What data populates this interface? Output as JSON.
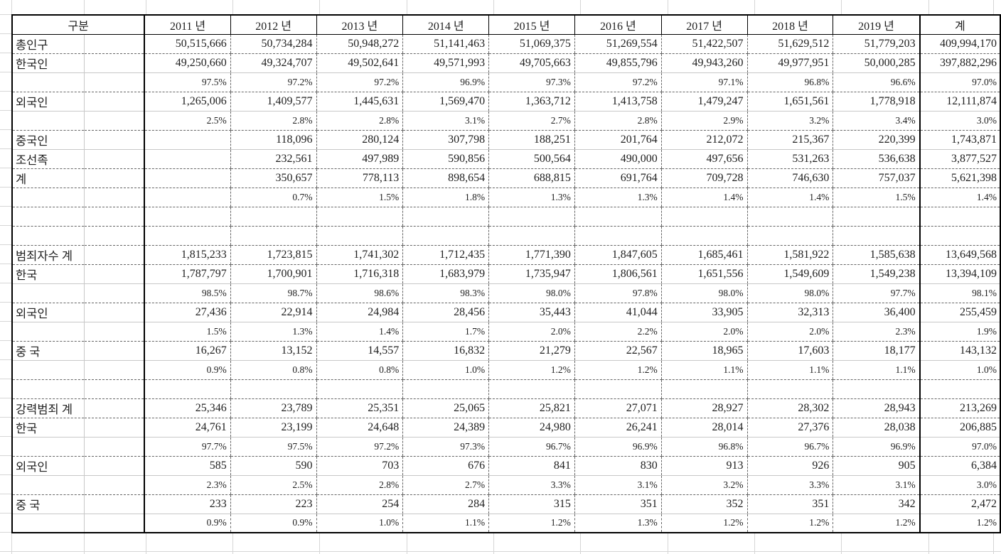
{
  "colors": {
    "background": "#ffffff",
    "text": "#1f1f1f",
    "solid_border": "#000000",
    "dashed_border": "#666666",
    "pair_divider": "#c8c8c8",
    "sheet_gridline": "#d6d6d6"
  },
  "table": {
    "header": {
      "label": "구분",
      "years": [
        "2011 년",
        "2012 년",
        "2013 년",
        "2014 년",
        "2015 년",
        "2016 년",
        "2017 년",
        "2018 년",
        "2019 년"
      ],
      "total": "계"
    },
    "rows": [
      {
        "label": "총인구",
        "kind": "num",
        "sep": "dashed",
        "values": [
          "50,515,666",
          "50,734,284",
          "50,948,272",
          "51,141,463",
          "51,069,375",
          "51,269,554",
          "51,422,507",
          "51,629,512",
          "51,779,203"
        ],
        "total": "409,994,170"
      },
      {
        "label": "한국인",
        "kind": "num",
        "sep": "gray",
        "values": [
          "49,250,660",
          "49,324,707",
          "49,502,641",
          "49,571,993",
          "49,705,663",
          "49,855,796",
          "49,943,260",
          "49,977,951",
          "50,000,285"
        ],
        "total": "397,882,296"
      },
      {
        "label": "",
        "kind": "pct",
        "sep": "dashed",
        "values": [
          "97.5%",
          "97.2%",
          "97.2%",
          "96.9%",
          "97.3%",
          "97.2%",
          "97.1%",
          "96.8%",
          "96.6%"
        ],
        "total": "97.0%"
      },
      {
        "label": "외국인",
        "kind": "num",
        "sep": "gray",
        "values": [
          "1,265,006",
          "1,409,577",
          "1,445,631",
          "1,569,470",
          "1,363,712",
          "1,413,758",
          "1,479,247",
          "1,651,561",
          "1,778,918"
        ],
        "total": "12,111,874"
      },
      {
        "label": "",
        "kind": "pct",
        "sep": "dashed",
        "values": [
          "2.5%",
          "2.8%",
          "2.8%",
          "3.1%",
          "2.7%",
          "2.8%",
          "2.9%",
          "3.2%",
          "3.4%"
        ],
        "total": "3.0%"
      },
      {
        "label": "중국인",
        "kind": "num",
        "sep": "gray",
        "values": [
          "",
          "118,096",
          "280,124",
          "307,798",
          "188,251",
          "201,764",
          "212,072",
          "215,367",
          "220,399"
        ],
        "total": "1,743,871"
      },
      {
        "label": "조선족",
        "kind": "num",
        "sep": "dashed",
        "values": [
          "",
          "232,561",
          "497,989",
          "590,856",
          "500,564",
          "490,000",
          "497,656",
          "531,263",
          "536,638"
        ],
        "total": "3,877,527"
      },
      {
        "label": "계",
        "kind": "num",
        "sep": "dashed",
        "values": [
          "",
          "350,657",
          "778,113",
          "898,654",
          "688,815",
          "691,764",
          "709,728",
          "746,630",
          "757,037"
        ],
        "total": "5,621,398"
      },
      {
        "label": "",
        "kind": "pct",
        "sep": "dashed",
        "values": [
          "",
          "0.7%",
          "1.5%",
          "1.8%",
          "1.3%",
          "1.3%",
          "1.4%",
          "1.4%",
          "1.5%"
        ],
        "total": "1.4%"
      },
      {
        "label": "",
        "kind": "blank",
        "sep": "dashed",
        "values": [
          "",
          "",
          "",
          "",
          "",
          "",
          "",
          "",
          ""
        ],
        "total": ""
      },
      {
        "label": "",
        "kind": "blank",
        "sep": "dashed",
        "values": [
          "",
          "",
          "",
          "",
          "",
          "",
          "",
          "",
          ""
        ],
        "total": ""
      },
      {
        "label": "범죄자수 계",
        "kind": "num",
        "sep": "dashed",
        "values": [
          "1,815,233",
          "1,723,815",
          "1,741,302",
          "1,712,435",
          "1,771,390",
          "1,847,605",
          "1,685,461",
          "1,581,922",
          "1,585,638"
        ],
        "total": "13,649,568"
      },
      {
        "label": "한국",
        "kind": "num",
        "sep": "gray",
        "values": [
          "1,787,797",
          "1,700,901",
          "1,716,318",
          "1,683,979",
          "1,735,947",
          "1,806,561",
          "1,651,556",
          "1,549,609",
          "1,549,238"
        ],
        "total": "13,394,109"
      },
      {
        "label": "",
        "kind": "pct",
        "sep": "dashed",
        "values": [
          "98.5%",
          "98.7%",
          "98.6%",
          "98.3%",
          "98.0%",
          "97.8%",
          "98.0%",
          "98.0%",
          "97.7%"
        ],
        "total": "98.1%"
      },
      {
        "label": "외국인",
        "kind": "num",
        "sep": "gray",
        "values": [
          "27,436",
          "22,914",
          "24,984",
          "28,456",
          "35,443",
          "41,044",
          "33,905",
          "32,313",
          "36,400"
        ],
        "total": "255,459"
      },
      {
        "label": "",
        "kind": "pct",
        "sep": "dashed",
        "values": [
          "1.5%",
          "1.3%",
          "1.4%",
          "1.7%",
          "2.0%",
          "2.2%",
          "2.0%",
          "2.0%",
          "2.3%"
        ],
        "total": "1.9%"
      },
      {
        "label": "중 국",
        "kind": "num",
        "sep": "gray",
        "values": [
          "16,267",
          "13,152",
          "14,557",
          "16,832",
          "21,279",
          "22,567",
          "18,965",
          "17,603",
          "18,177"
        ],
        "total": "143,132"
      },
      {
        "label": "",
        "kind": "pct",
        "sep": "dashed",
        "values": [
          "0.9%",
          "0.8%",
          "0.8%",
          "1.0%",
          "1.2%",
          "1.2%",
          "1.1%",
          "1.1%",
          "1.1%"
        ],
        "total": "1.0%"
      },
      {
        "label": "",
        "kind": "blank",
        "sep": "dashed",
        "values": [
          "",
          "",
          "",
          "",
          "",
          "",
          "",
          "",
          ""
        ],
        "total": ""
      },
      {
        "label": "강력범죄 계",
        "kind": "num",
        "sep": "dashed",
        "values": [
          "25,346",
          "23,789",
          "25,351",
          "25,065",
          "25,821",
          "27,071",
          "28,927",
          "28,302",
          "28,943"
        ],
        "total": "213,269"
      },
      {
        "label": "한국",
        "kind": "num",
        "sep": "gray",
        "values": [
          "24,761",
          "23,199",
          "24,648",
          "24,389",
          "24,980",
          "26,241",
          "28,014",
          "27,376",
          "28,038"
        ],
        "total": "206,885"
      },
      {
        "label": "",
        "kind": "pct",
        "sep": "dashed",
        "values": [
          "97.7%",
          "97.5%",
          "97.2%",
          "97.3%",
          "96.7%",
          "96.9%",
          "96.8%",
          "96.7%",
          "96.9%"
        ],
        "total": "97.0%"
      },
      {
        "label": "외국인",
        "kind": "num",
        "sep": "gray",
        "values": [
          "585",
          "590",
          "703",
          "676",
          "841",
          "830",
          "913",
          "926",
          "905"
        ],
        "total": "6,384"
      },
      {
        "label": "",
        "kind": "pct",
        "sep": "dashed",
        "values": [
          "2.3%",
          "2.5%",
          "2.8%",
          "2.7%",
          "3.3%",
          "3.1%",
          "3.2%",
          "3.3%",
          "3.1%"
        ],
        "total": "3.0%"
      },
      {
        "label": "중 국",
        "kind": "num",
        "sep": "gray",
        "values": [
          "233",
          "223",
          "254",
          "284",
          "315",
          "351",
          "352",
          "351",
          "342"
        ],
        "total": "2,472"
      },
      {
        "label": "",
        "kind": "pct",
        "sep": "none",
        "values": [
          "0.9%",
          "0.9%",
          "1.0%",
          "1.1%",
          "1.2%",
          "1.3%",
          "1.2%",
          "1.2%",
          "1.2%"
        ],
        "total": "1.2%"
      }
    ]
  }
}
